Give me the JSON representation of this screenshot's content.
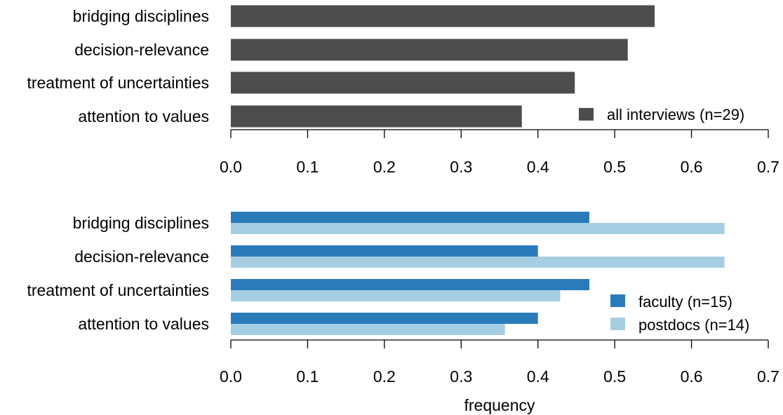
{
  "chart_data": [
    {
      "type": "bar",
      "orientation": "horizontal",
      "categories": [
        "bridging disciplines",
        "decision-relevance",
        "treatment of uncertainties",
        "attention to values"
      ],
      "series": [
        {
          "name": "all interviews (n=29)",
          "values": [
            0.552,
            0.517,
            0.448,
            0.379
          ],
          "color": "#4d4d4d"
        }
      ],
      "xlim": [
        0,
        0.7
      ],
      "xticks": [
        "0.0",
        "0.1",
        "0.2",
        "0.3",
        "0.4",
        "0.5",
        "0.6",
        "0.7"
      ],
      "legend_position": "bottom-right",
      "xlabel": ""
    },
    {
      "type": "bar",
      "orientation": "horizontal",
      "categories": [
        "bridging disciplines",
        "decision-relevance",
        "treatment of uncertainties",
        "attention to values"
      ],
      "series": [
        {
          "name": "faculty (n=15)",
          "values": [
            0.467,
            0.4,
            0.467,
            0.4
          ],
          "color": "#2b7bba"
        },
        {
          "name": "postdocs (n=14)",
          "values": [
            0.643,
            0.643,
            0.429,
            0.357
          ],
          "color": "#a6cee3"
        }
      ],
      "xlim": [
        0,
        0.7
      ],
      "xticks": [
        "0.0",
        "0.1",
        "0.2",
        "0.3",
        "0.4",
        "0.5",
        "0.6",
        "0.7"
      ],
      "legend_position": "bottom-right",
      "xlabel": "frequency"
    }
  ]
}
